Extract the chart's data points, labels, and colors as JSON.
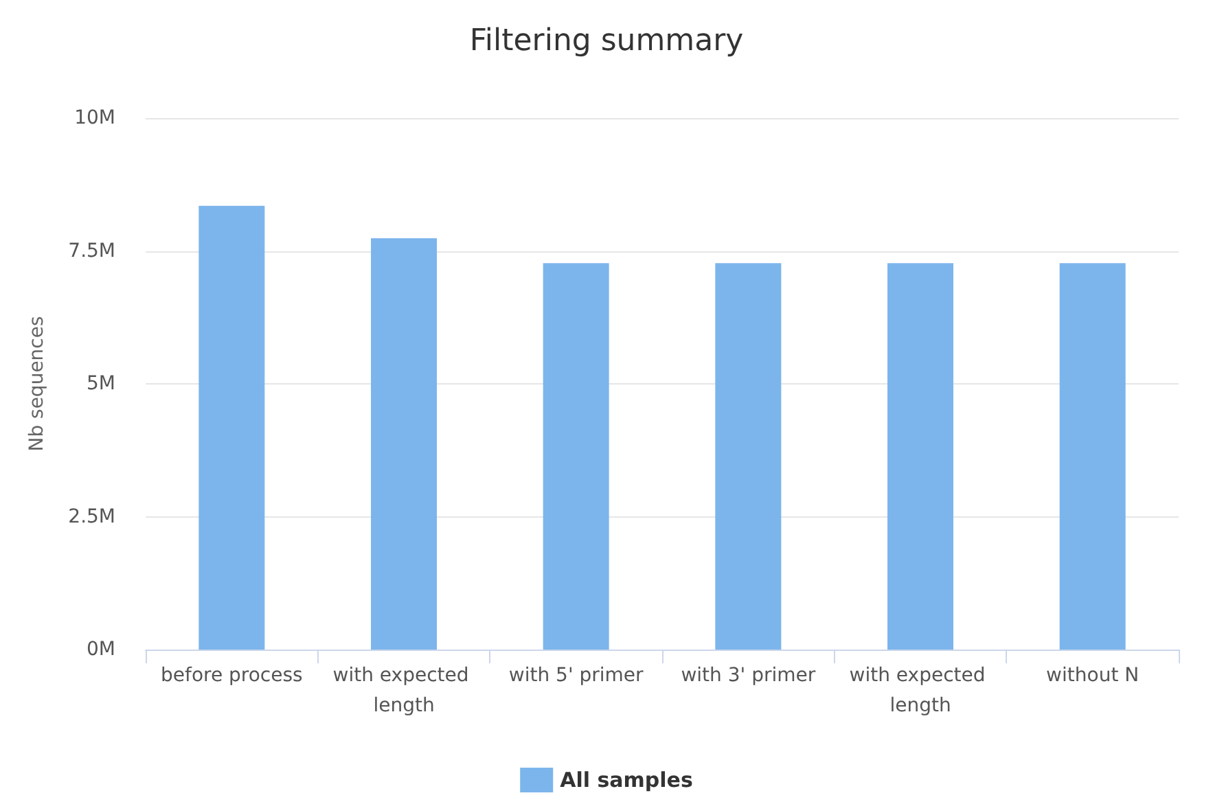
{
  "chart_data": {
    "type": "bar",
    "title": "Filtering summary",
    "ylabel": "Nb sequences",
    "categories": [
      "before process",
      "with expected length",
      "with 5' primer",
      "with 3' primer",
      "with expected length",
      "without N"
    ],
    "series": [
      {
        "name": "All samples",
        "color": "#7cb5ec",
        "values": [
          8.35,
          7.74,
          7.27,
          7.27,
          7.27,
          7.27
        ]
      }
    ],
    "ylim": [
      0,
      10
    ],
    "yticks": [
      {
        "value": 0,
        "label": "0M"
      },
      {
        "value": 2.5,
        "label": "2.5M"
      },
      {
        "value": 5,
        "label": "5M"
      },
      {
        "value": 7.5,
        "label": "7.5M"
      },
      {
        "value": 10,
        "label": "10M"
      }
    ],
    "grid": "y",
    "legend": "bottom"
  }
}
